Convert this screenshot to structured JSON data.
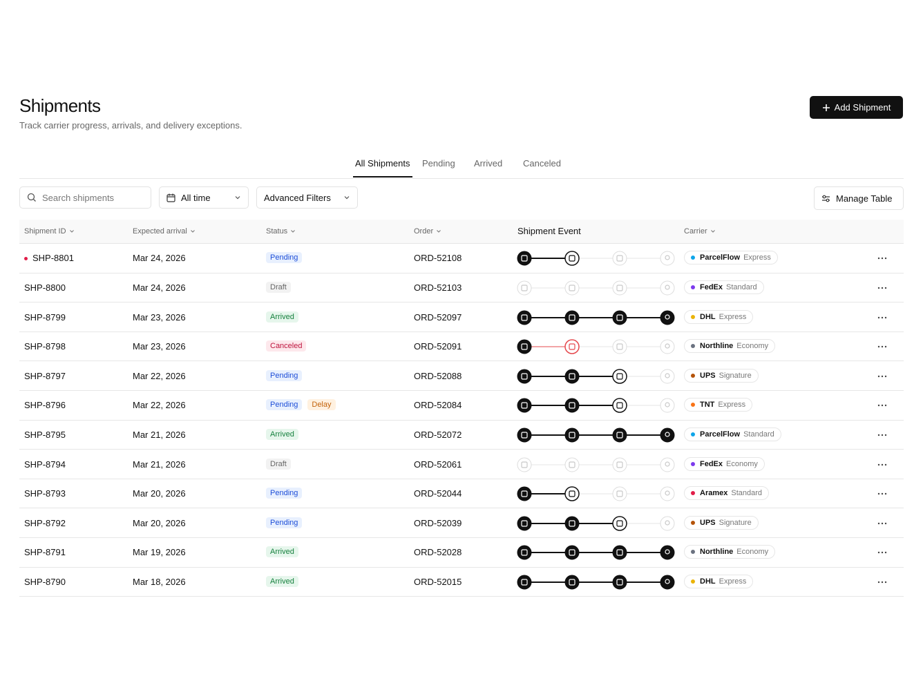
{
  "header": {
    "title": "Shipments",
    "subtitle": "Track carrier progress, arrivals, and delivery exceptions.",
    "button": "Add Shipment"
  },
  "tabs": {
    "items": [
      "All Shipments",
      "Pending",
      "Arrived",
      "Canceled"
    ],
    "active": 0
  },
  "toolbar": {
    "search": "Search shipments",
    "date": "All time",
    "filters": "Advanced Filters",
    "manage": "Manage Table"
  },
  "table": {
    "columns": [
      "Shipment ID",
      "Expected arrival",
      "Status",
      "Order",
      "Shipment Event",
      "Carrier"
    ],
    "rows": [
      {
        "id": "SHP-8801",
        "flag": true,
        "arrival": "Mar 24, 2026",
        "status": [
          {
            "label": "Pending",
            "tone": "blue"
          }
        ],
        "order": "ORD-52108",
        "stage": 2,
        "carrier": "ParcelFlow",
        "service": "Express",
        "carrier_color": "#0ea5e9"
      },
      {
        "id": "SHP-8800",
        "arrival": "Mar 24, 2026",
        "status": [
          {
            "label": "Draft",
            "tone": "gray"
          }
        ],
        "order": "ORD-52103",
        "stage": 0,
        "carrier": "FedEx",
        "service": "Standard",
        "carrier_color": "#7c3aed"
      },
      {
        "id": "SHP-8799",
        "arrival": "Mar 23, 2026",
        "status": [
          {
            "label": "Arrived",
            "tone": "green"
          }
        ],
        "order": "ORD-52097",
        "stage": 4,
        "carrier": "DHL",
        "service": "Express",
        "carrier_color": "#eab308"
      },
      {
        "id": "SHP-8798",
        "arrival": "Mar 23, 2026",
        "status": [
          {
            "label": "Canceled",
            "tone": "red"
          }
        ],
        "order": "ORD-52091",
        "stage": 2,
        "carrier": "Northline",
        "service": "Economy",
        "carrier_color": "#6b7280"
      },
      {
        "id": "SHP-8797",
        "arrival": "Mar 22, 2026",
        "status": [
          {
            "label": "Pending",
            "tone": "blue"
          }
        ],
        "order": "ORD-52088",
        "stage": 3,
        "carrier": "UPS",
        "service": "Signature",
        "carrier_color": "#b45309"
      },
      {
        "id": "SHP-8796",
        "arrival": "Mar 22, 2026",
        "status": [
          {
            "label": "Pending",
            "tone": "blue"
          },
          {
            "label": "Delay",
            "tone": "orange"
          }
        ],
        "order": "ORD-52084",
        "stage": 3,
        "carrier": "TNT",
        "service": "Express",
        "carrier_color": "#f97316"
      },
      {
        "id": "SHP-8795",
        "arrival": "Mar 21, 2026",
        "status": [
          {
            "label": "Arrived",
            "tone": "green"
          }
        ],
        "order": "ORD-52072",
        "stage": 4,
        "carrier": "ParcelFlow",
        "service": "Standard",
        "carrier_color": "#0ea5e9"
      },
      {
        "id": "SHP-8794",
        "arrival": "Mar 21, 2026",
        "status": [
          {
            "label": "Draft",
            "tone": "gray"
          }
        ],
        "order": "ORD-52061",
        "stage": 0,
        "carrier": "FedEx",
        "service": "Economy",
        "carrier_color": "#7c3aed"
      },
      {
        "id": "SHP-8793",
        "arrival": "Mar 20, 2026",
        "status": [
          {
            "label": "Pending",
            "tone": "blue"
          }
        ],
        "order": "ORD-52044",
        "stage": 2,
        "carrier": "Aramex",
        "service": "Standard",
        "carrier_color": "#e11d48"
      },
      {
        "id": "SHP-8792",
        "arrival": "Mar 20, 2026",
        "status": [
          {
            "label": "Pending",
            "tone": "blue"
          }
        ],
        "order": "ORD-52039",
        "stage": 3,
        "carrier": "UPS",
        "service": "Signature",
        "carrier_color": "#b45309"
      },
      {
        "id": "SHP-8791",
        "arrival": "Mar 19, 2026",
        "status": [
          {
            "label": "Arrived",
            "tone": "green"
          }
        ],
        "order": "ORD-52028",
        "stage": 4,
        "carrier": "Northline",
        "service": "Economy",
        "carrier_color": "#6b7280"
      },
      {
        "id": "SHP-8790",
        "arrival": "Mar 18, 2026",
        "status": [
          {
            "label": "Arrived",
            "tone": "green"
          }
        ],
        "order": "ORD-52015",
        "stage": 4,
        "carrier": "DHL",
        "service": "Express",
        "carrier_color": "#eab308"
      }
    ]
  }
}
